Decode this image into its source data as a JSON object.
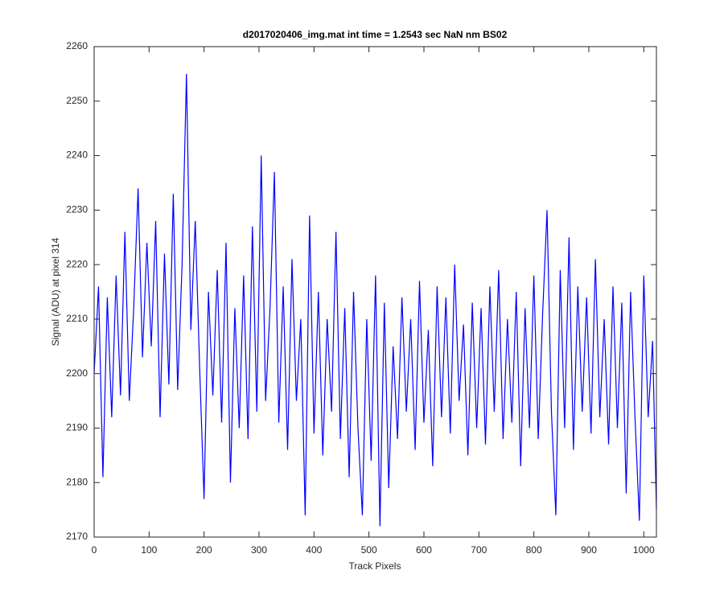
{
  "chart_data": {
    "type": "line",
    "title": "d2017020406_img.mat int time = 1.2543 sec  NaN nm BS02",
    "xlabel": "Track Pixels",
    "ylabel": "Signal (ADU) at pixel 314",
    "x": [
      0,
      8,
      16,
      24,
      32,
      40,
      48,
      56,
      64,
      72,
      80,
      88,
      96,
      104,
      112,
      120,
      128,
      136,
      144,
      152,
      160,
      168,
      176,
      184,
      192,
      200,
      208,
      216,
      224,
      232,
      240,
      248,
      256,
      264,
      272,
      280,
      288,
      296,
      304,
      312,
      320,
      328,
      336,
      344,
      352,
      360,
      368,
      376,
      384,
      392,
      400,
      408,
      416,
      424,
      432,
      440,
      448,
      456,
      464,
      472,
      480,
      488,
      496,
      504,
      512,
      520,
      528,
      536,
      544,
      552,
      560,
      568,
      576,
      584,
      592,
      600,
      608,
      616,
      624,
      632,
      640,
      648,
      656,
      664,
      672,
      680,
      688,
      696,
      704,
      712,
      720,
      728,
      736,
      744,
      752,
      760,
      768,
      776,
      784,
      792,
      800,
      808,
      816,
      824,
      832,
      840,
      848,
      856,
      864,
      872,
      880,
      888,
      896,
      904,
      912,
      920,
      928,
      936,
      944,
      952,
      960,
      968,
      976,
      984,
      992,
      1000,
      1008,
      1016,
      1023
    ],
    "series": [
      {
        "name": "Signal",
        "color": "#0000ff",
        "values": [
          2200,
          2216,
          2181,
          2214,
          2192,
          2218,
          2196,
          2226,
          2195,
          2212,
          2234,
          2203,
          2224,
          2205,
          2228,
          2192,
          2222,
          2198,
          2233,
          2197,
          2220,
          2255,
          2208,
          2228,
          2201,
          2177,
          2215,
          2196,
          2219,
          2191,
          2224,
          2180,
          2212,
          2190,
          2218,
          2188,
          2227,
          2193,
          2240,
          2195,
          2212,
          2237,
          2191,
          2216,
          2186,
          2221,
          2195,
          2210,
          2174,
          2229,
          2189,
          2215,
          2185,
          2210,
          2193,
          2226,
          2188,
          2212,
          2181,
          2215,
          2190,
          2174,
          2210,
          2184,
          2218,
          2172,
          2213,
          2179,
          2205,
          2188,
          2214,
          2193,
          2210,
          2186,
          2217,
          2191,
          2208,
          2183,
          2216,
          2192,
          2214,
          2189,
          2220,
          2195,
          2209,
          2185,
          2213,
          2190,
          2212,
          2187,
          2216,
          2193,
          2219,
          2188,
          2210,
          2191,
          2215,
          2183,
          2212,
          2190,
          2218,
          2188,
          2211,
          2230,
          2193,
          2174,
          2219,
          2190,
          2225,
          2186,
          2216,
          2193,
          2214,
          2189,
          2221,
          2192,
          2210,
          2187,
          2216,
          2190,
          2213,
          2178,
          2215,
          2192,
          2173,
          2218,
          2192,
          2206,
          2175
        ]
      }
    ],
    "xlim": [
      0,
      1023
    ],
    "ylim": [
      2170,
      2260
    ],
    "xticks": [
      0,
      100,
      200,
      300,
      400,
      500,
      600,
      700,
      800,
      900,
      1000
    ],
    "yticks": [
      2170,
      2180,
      2190,
      2200,
      2210,
      2220,
      2230,
      2240,
      2250,
      2260
    ]
  }
}
